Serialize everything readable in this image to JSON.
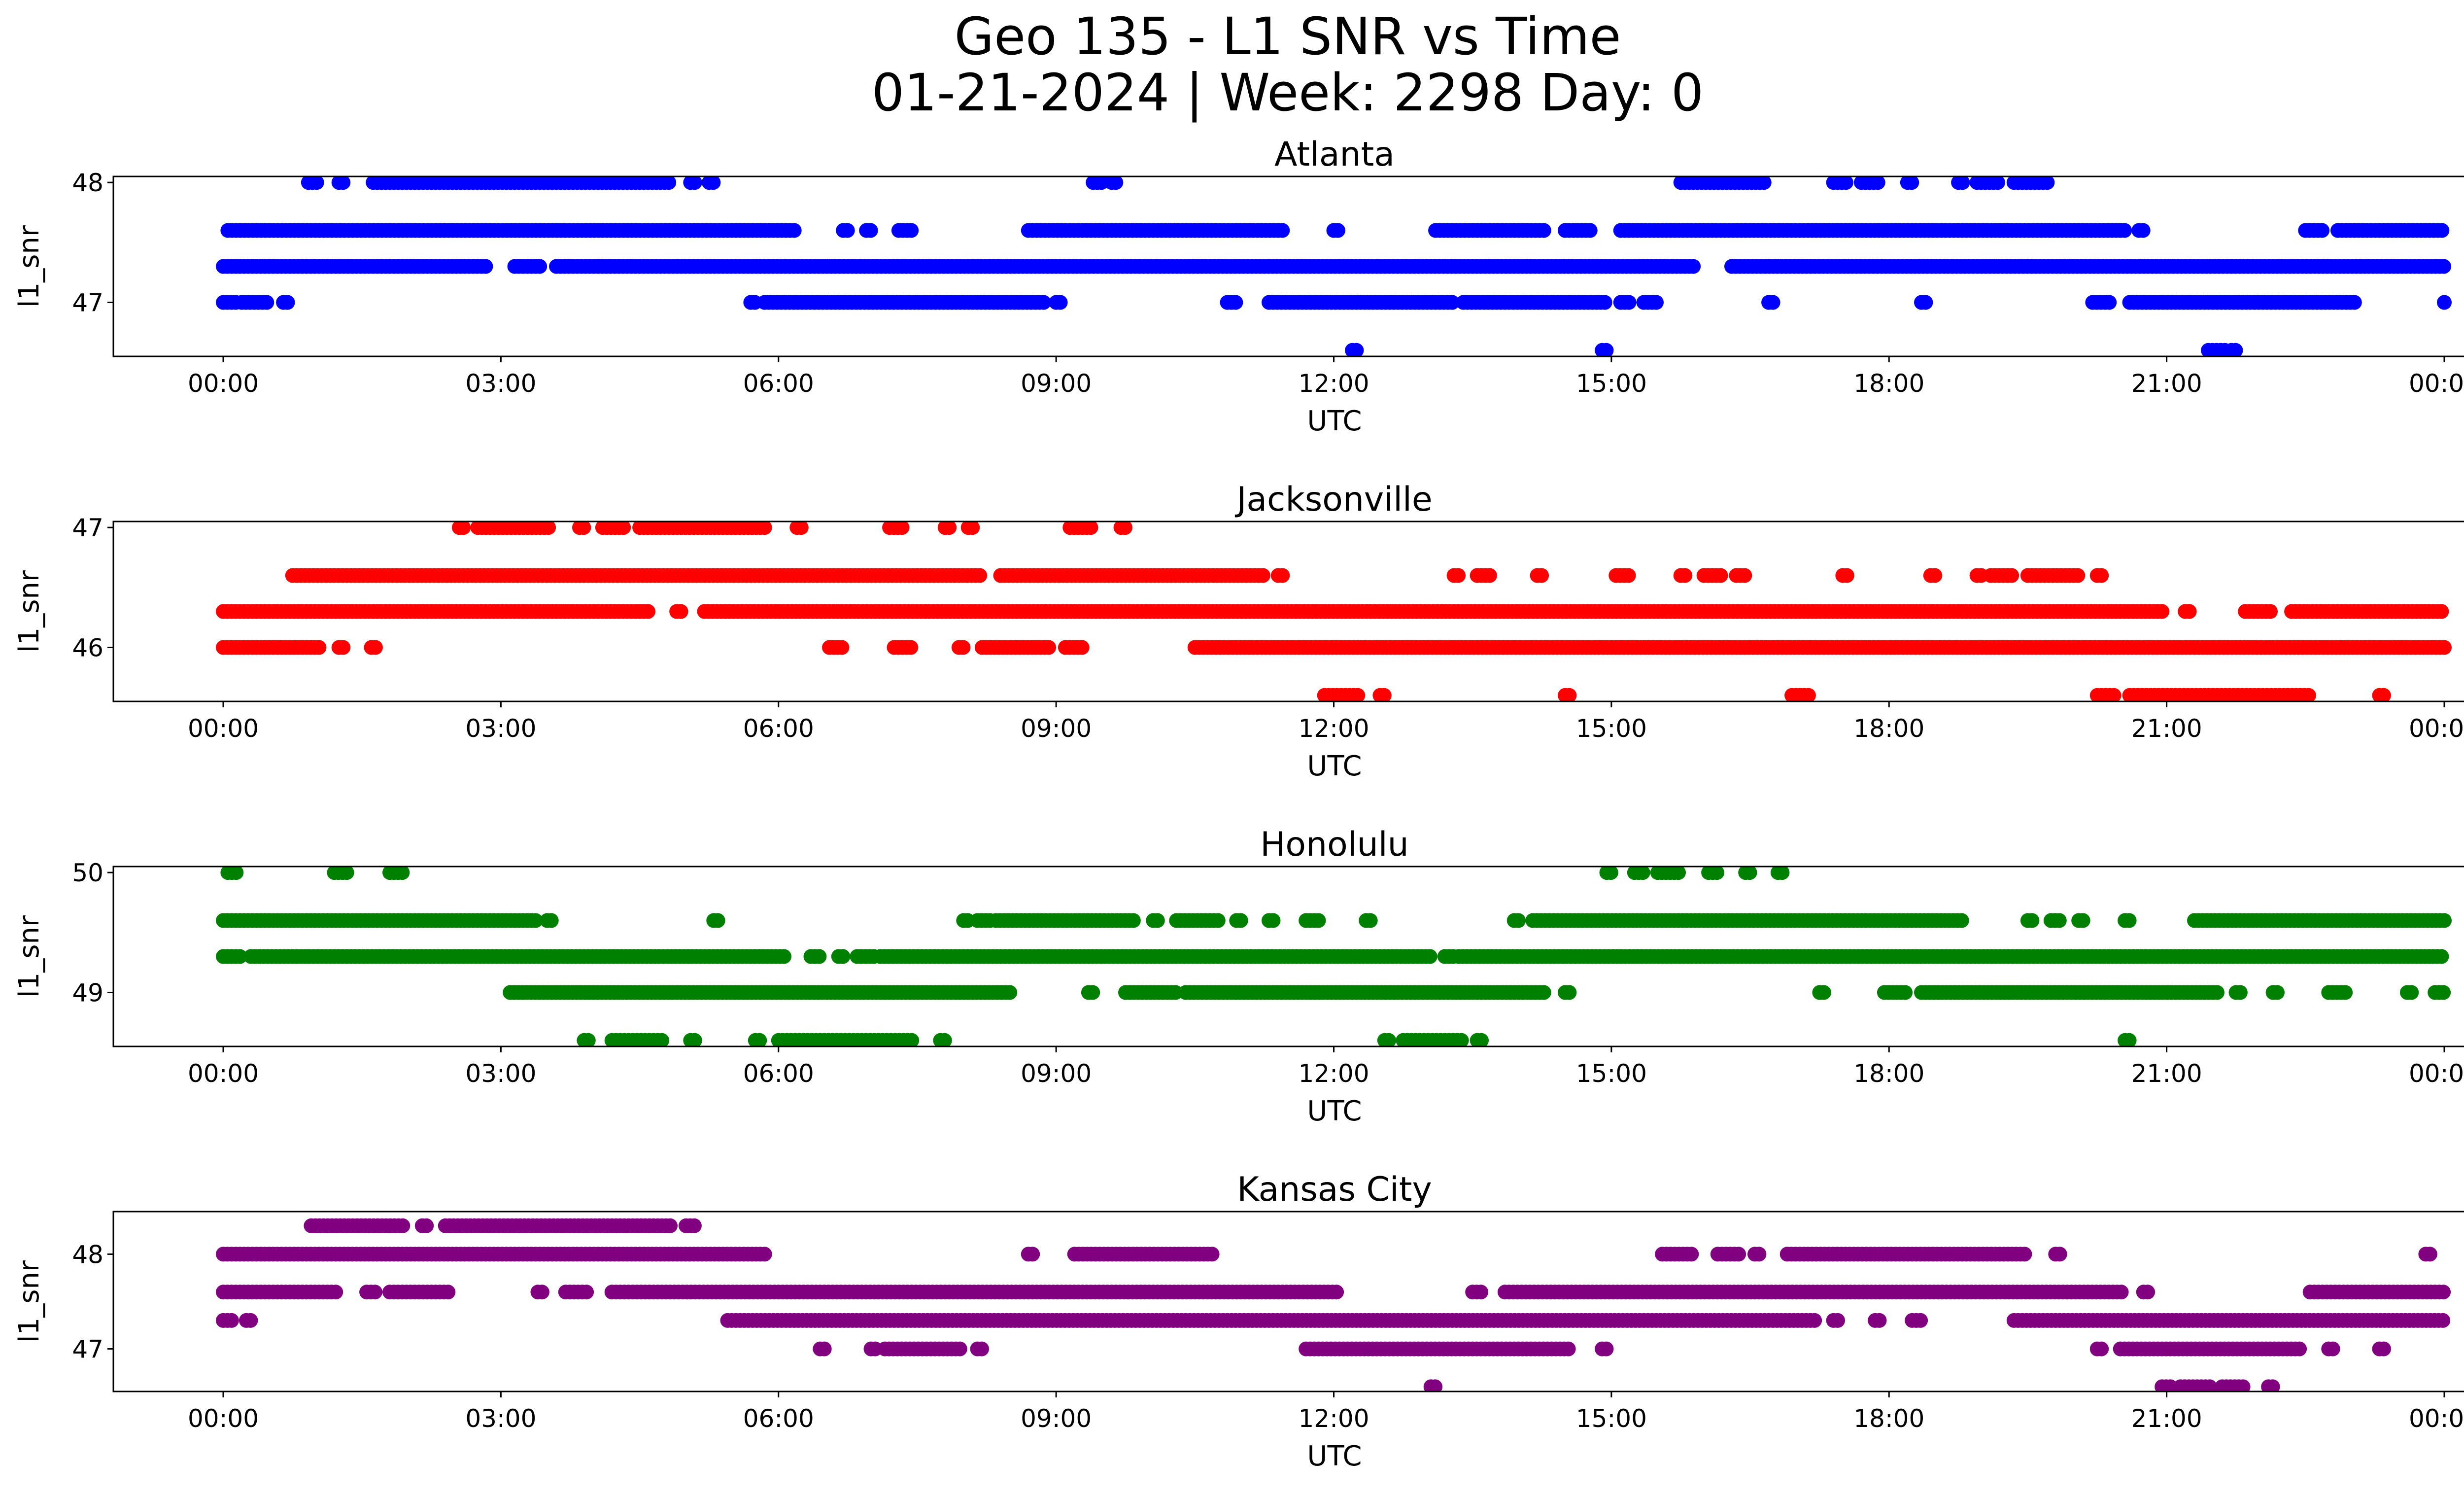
{
  "chart_data": {
    "type": "scatter",
    "title": "Geo 135 - L1 SNR vs Time",
    "subtitle": "01-21-2024 | Week: 2298 Day: 0",
    "xlabel": "UTC",
    "ylabel": "l1_snr",
    "xlim": [
      "00:00",
      "24:00"
    ],
    "x_ticks": [
      "00:00",
      "03:00",
      "06:00",
      "09:00",
      "12:00",
      "15:00",
      "18:00",
      "21:00",
      "00:00"
    ],
    "x_unit": "hours UTC (tick 00:00 at the right end = next midnight)",
    "subplots": [
      {
        "title": "Atlanta",
        "color": "#0000ff",
        "y_ticks": [
          47,
          48
        ],
        "ylim": [
          46.55,
          48.05
        ],
        "levels": [
          {
            "y": 48.0,
            "segments": [
              [
                0.92,
                1.05
              ],
              [
                1.25,
                1.3
              ],
              [
                1.62,
                4.85
              ],
              [
                5.05,
                5.1
              ],
              [
                5.25,
                5.3
              ],
              [
                9.4,
                9.5
              ],
              [
                9.6,
                9.65
              ],
              [
                15.75,
                16.65
              ],
              [
                17.4,
                17.55
              ],
              [
                17.7,
                17.9
              ],
              [
                18.2,
                18.25
              ],
              [
                18.75,
                18.8
              ],
              [
                18.95,
                19.2
              ],
              [
                19.35,
                19.75
              ]
            ]
          },
          {
            "y": 47.6,
            "segments": [
              [
                0.05,
                6.2
              ],
              [
                6.7,
                6.75
              ],
              [
                6.95,
                7.0
              ],
              [
                7.3,
                7.45
              ],
              [
                8.7,
                11.45
              ],
              [
                12.0,
                12.05
              ],
              [
                13.1,
                14.3
              ],
              [
                14.5,
                14.8
              ],
              [
                15.1,
                20.55
              ],
              [
                20.7,
                20.75
              ],
              [
                22.5,
                22.7
              ],
              [
                22.85,
                24.0
              ]
            ]
          },
          {
            "y": 47.3,
            "segments": [
              [
                0.0,
                2.85
              ],
              [
                3.15,
                3.45
              ],
              [
                3.6,
                15.9
              ],
              [
                16.3,
                24.0
              ]
            ]
          },
          {
            "y": 47.0,
            "segments": [
              [
                0.0,
                0.15
              ],
              [
                0.2,
                0.5
              ],
              [
                0.65,
                0.7
              ],
              [
                5.7,
                5.75
              ],
              [
                5.85,
                8.9
              ],
              [
                9.0,
                9.05
              ],
              [
                10.85,
                10.95
              ],
              [
                11.3,
                13.3
              ],
              [
                13.4,
                14.95
              ],
              [
                15.1,
                15.2
              ],
              [
                15.35,
                15.5
              ],
              [
                16.7,
                16.75
              ],
              [
                18.35,
                18.4
              ],
              [
                20.2,
                20.4
              ],
              [
                20.6,
                23.05
              ],
              [
                24.0,
                24.0
              ]
            ]
          },
          {
            "y": 46.6,
            "segments": [
              [
                12.2,
                12.25
              ],
              [
                14.9,
                14.95
              ],
              [
                21.45,
                21.65
              ],
              [
                21.7,
                21.75
              ]
            ]
          }
        ]
      },
      {
        "title": "Jacksonville",
        "color": "#ff0000",
        "y_ticks": [
          46,
          47
        ],
        "ylim": [
          45.55,
          47.05
        ],
        "levels": [
          {
            "y": 47.0,
            "segments": [
              [
                2.55,
                2.6
              ],
              [
                2.75,
                3.55
              ],
              [
                3.85,
                3.9
              ],
              [
                4.1,
                4.35
              ],
              [
                4.5,
                5.85
              ],
              [
                6.2,
                6.25
              ],
              [
                7.2,
                7.35
              ],
              [
                7.8,
                7.85
              ],
              [
                8.05,
                8.1
              ],
              [
                9.15,
                9.4
              ],
              [
                9.7,
                9.75
              ]
            ]
          },
          {
            "y": 46.6,
            "segments": [
              [
                0.75,
                8.2
              ],
              [
                8.4,
                11.25
              ],
              [
                11.4,
                11.45
              ],
              [
                13.3,
                13.35
              ],
              [
                13.55,
                13.7
              ],
              [
                14.2,
                14.25
              ],
              [
                15.05,
                15.2
              ],
              [
                15.75,
                15.8
              ],
              [
                16.0,
                16.2
              ],
              [
                16.35,
                16.45
              ],
              [
                17.5,
                17.55
              ],
              [
                18.45,
                18.5
              ],
              [
                18.95,
                19.0
              ],
              [
                19.1,
                19.35
              ],
              [
                19.5,
                20.05
              ],
              [
                20.25,
                20.3
              ]
            ]
          },
          {
            "y": 46.3,
            "segments": [
              [
                0.0,
                4.6
              ],
              [
                4.9,
                4.95
              ],
              [
                5.2,
                20.95
              ],
              [
                21.2,
                21.25
              ],
              [
                21.85,
                22.15
              ],
              [
                22.35,
                24.0
              ]
            ]
          },
          {
            "y": 46.0,
            "segments": [
              [
                0.0,
                1.05
              ],
              [
                1.25,
                1.3
              ],
              [
                1.6,
                1.65
              ],
              [
                6.55,
                6.7
              ],
              [
                7.25,
                7.45
              ],
              [
                7.95,
                8.0
              ],
              [
                8.2,
                8.95
              ],
              [
                9.1,
                9.3
              ],
              [
                10.5,
                24.0
              ]
            ]
          },
          {
            "y": 45.6,
            "segments": [
              [
                11.9,
                12.3
              ],
              [
                12.5,
                12.55
              ],
              [
                14.5,
                14.55
              ],
              [
                16.95,
                17.15
              ],
              [
                20.25,
                20.45
              ],
              [
                20.6,
                22.55
              ],
              [
                23.3,
                23.35
              ]
            ]
          }
        ]
      },
      {
        "title": "Honolulu",
        "color": "#008000",
        "y_ticks": [
          49,
          50
        ],
        "ylim": [
          48.55,
          50.05
        ],
        "levels": [
          {
            "y": 50.0,
            "segments": [
              [
                0.05,
                0.15
              ],
              [
                1.2,
                1.35
              ],
              [
                1.8,
                1.95
              ],
              [
                14.95,
                15.0
              ],
              [
                15.25,
                15.35
              ],
              [
                15.5,
                15.75
              ],
              [
                16.05,
                16.15
              ],
              [
                16.45,
                16.5
              ],
              [
                16.8,
                16.85
              ]
            ]
          },
          {
            "y": 49.6,
            "segments": [
              [
                0.0,
                3.4
              ],
              [
                3.5,
                3.55
              ],
              [
                5.3,
                5.35
              ],
              [
                8.0,
                8.05
              ],
              [
                8.15,
                8.3
              ],
              [
                8.35,
                9.85
              ],
              [
                10.05,
                10.1
              ],
              [
                10.3,
                10.75
              ],
              [
                10.95,
                11.0
              ],
              [
                11.3,
                11.35
              ],
              [
                11.7,
                11.85
              ],
              [
                12.35,
                12.4
              ],
              [
                13.95,
                14.0
              ],
              [
                14.15,
                18.8
              ],
              [
                19.5,
                19.55
              ],
              [
                19.75,
                19.85
              ],
              [
                20.05,
                20.1
              ],
              [
                20.55,
                20.6
              ],
              [
                21.3,
                24.0
              ]
            ]
          },
          {
            "y": 49.3,
            "segments": [
              [
                0.0,
                0.2
              ],
              [
                0.3,
                6.1
              ],
              [
                6.35,
                6.45
              ],
              [
                6.65,
                6.7
              ],
              [
                6.85,
                7.05
              ],
              [
                7.1,
                13.05
              ],
              [
                13.2,
                13.3
              ],
              [
                13.35,
                24.0
              ]
            ]
          },
          {
            "y": 49.0,
            "segments": [
              [
                3.1,
                8.5
              ],
              [
                9.35,
                9.4
              ],
              [
                9.75,
                10.3
              ],
              [
                10.4,
                14.3
              ],
              [
                14.5,
                14.55
              ],
              [
                17.25,
                17.3
              ],
              [
                17.95,
                18.2
              ],
              [
                18.35,
                21.55
              ],
              [
                21.75,
                21.8
              ],
              [
                22.15,
                22.2
              ],
              [
                22.75,
                22.95
              ],
              [
                23.6,
                23.65
              ],
              [
                23.9,
                24.0
              ]
            ]
          },
          {
            "y": 48.6,
            "segments": [
              [
                3.9,
                3.95
              ],
              [
                4.2,
                4.75
              ],
              [
                5.05,
                5.1
              ],
              [
                5.75,
                5.8
              ],
              [
                6.0,
                7.45
              ],
              [
                7.75,
                7.8
              ],
              [
                12.55,
                12.6
              ],
              [
                12.75,
                13.4
              ],
              [
                13.55,
                13.6
              ],
              [
                20.55,
                20.6
              ]
            ]
          }
        ]
      },
      {
        "title": "Kansas City",
        "color": "#800080",
        "y_ticks": [
          47,
          48
        ],
        "ylim": [
          46.55,
          48.45
        ],
        "levels": [
          {
            "y": 48.3,
            "segments": [
              [
                0.95,
                1.95
              ],
              [
                2.15,
                2.2
              ],
              [
                2.4,
                4.85
              ],
              [
                5.0,
                5.1
              ]
            ]
          },
          {
            "y": 48.0,
            "segments": [
              [
                0.0,
                5.85
              ],
              [
                8.7,
                8.75
              ],
              [
                9.2,
                10.7
              ],
              [
                15.55,
                15.9
              ],
              [
                16.15,
                16.4
              ],
              [
                16.55,
                16.6
              ],
              [
                16.9,
                19.5
              ],
              [
                19.8,
                19.85
              ],
              [
                23.8,
                23.85
              ]
            ]
          },
          {
            "y": 47.6,
            "segments": [
              [
                0.0,
                1.25
              ],
              [
                1.55,
                1.65
              ],
              [
                1.8,
                2.45
              ],
              [
                3.4,
                3.45
              ],
              [
                3.7,
                3.95
              ],
              [
                4.2,
                12.05
              ],
              [
                13.5,
                13.6
              ],
              [
                13.85,
                20.55
              ],
              [
                20.75,
                20.8
              ],
              [
                22.55,
                24.0
              ]
            ]
          },
          {
            "y": 47.3,
            "segments": [
              [
                0.0,
                0.1
              ],
              [
                0.25,
                0.3
              ],
              [
                5.45,
                17.2
              ],
              [
                17.4,
                17.45
              ],
              [
                17.85,
                17.9
              ],
              [
                18.25,
                18.35
              ],
              [
                19.35,
                24.0
              ]
            ]
          },
          {
            "y": 47.0,
            "segments": [
              [
                6.45,
                6.5
              ],
              [
                7.0,
                7.05
              ],
              [
                7.15,
                8.0
              ],
              [
                8.15,
                8.2
              ],
              [
                11.7,
                14.55
              ],
              [
                14.9,
                14.95
              ],
              [
                20.25,
                20.3
              ],
              [
                20.5,
                22.45
              ],
              [
                22.75,
                22.8
              ],
              [
                23.3,
                23.35
              ]
            ]
          },
          {
            "y": 46.6,
            "segments": [
              [
                13.05,
                13.1
              ],
              [
                20.95,
                21.05
              ],
              [
                21.15,
                21.5
              ],
              [
                21.6,
                21.85
              ],
              [
                22.1,
                22.15
              ]
            ]
          }
        ]
      }
    ]
  }
}
